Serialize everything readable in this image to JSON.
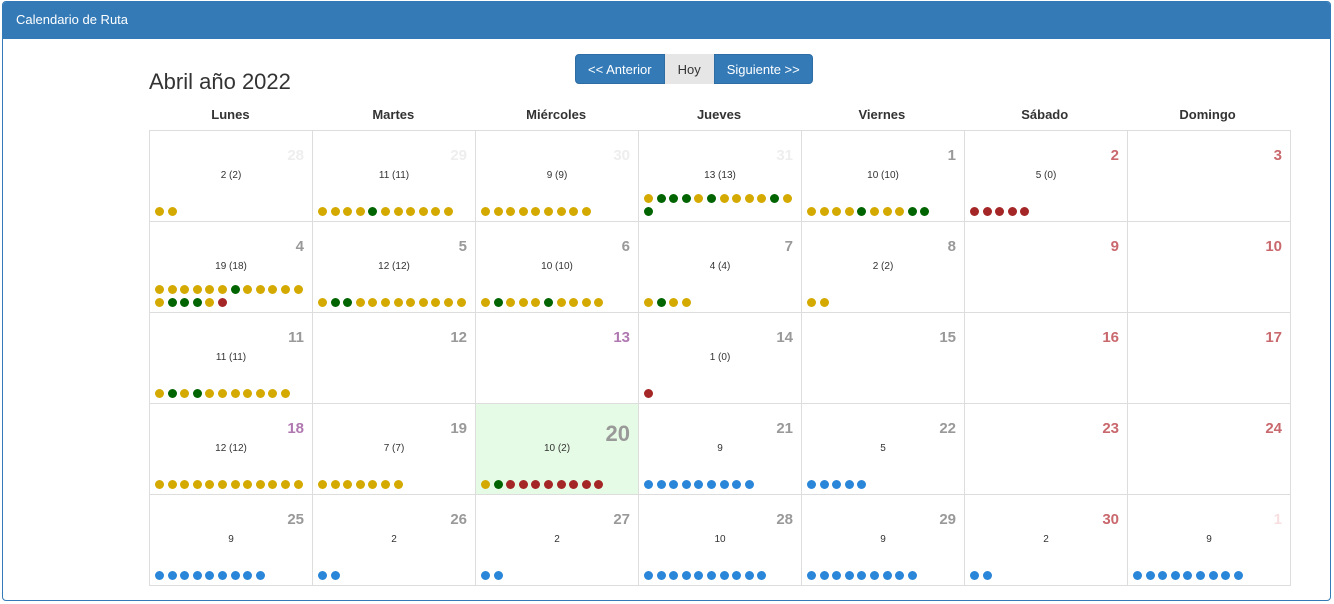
{
  "header": {
    "title": "Calendario de Ruta"
  },
  "nav": {
    "prev_label": "<< Anterior",
    "today_label": "Hoy",
    "next_label": "Siguiente >>"
  },
  "month_title": "Abril año 2022",
  "weekdays": [
    "Lunes",
    "Martes",
    "Miércoles",
    "Jueves",
    "Viernes",
    "Sábado",
    "Domingo"
  ],
  "colors": {
    "day_other_month": "#eeeeee",
    "day_other_month_weekend": "#f7dfe0",
    "day_weekday": "#999999",
    "day_weekend": "#c9686d",
    "day_holiday": "#b078b0",
    "today_bg": "#e5fbe5",
    "dot_green": "#006400",
    "dot_yellow": "#d4aa00",
    "dot_red": "#a52626",
    "dot_blue": "#2a86d8"
  },
  "weeks": [
    [
      {
        "day": "28",
        "kind": "other",
        "count": "2 (2)",
        "dots": "gy"
      },
      {
        "day": "29",
        "kind": "other",
        "count": "11 (11)",
        "dots": "yyyyGyyyyyy"
      },
      {
        "day": "30",
        "kind": "other",
        "count": "9 (9)",
        "dots": "yyyyyyyyy"
      },
      {
        "day": "31",
        "kind": "other",
        "count": "13 (13)",
        "dots": "yGGGyGyyyyGyG"
      },
      {
        "day": "1",
        "kind": "weekday",
        "count": "10 (10)",
        "dots": "yyyyGyyyGG"
      },
      {
        "day": "2",
        "kind": "weekend",
        "count": "5 (0)",
        "dots": "RRRRR"
      },
      {
        "day": "3",
        "kind": "weekend",
        "count": "",
        "dots": ""
      }
    ],
    [
      {
        "day": "4",
        "kind": "weekday",
        "count": "19 (18)",
        "dots": "yyyyyyGyyyyyyGGGyR"
      },
      {
        "day": "5",
        "kind": "weekday",
        "count": "12 (12)",
        "dots": "yGGyyyyyyyyy"
      },
      {
        "day": "6",
        "kind": "weekday",
        "count": "10 (10)",
        "dots": "yGyyyGyyyy"
      },
      {
        "day": "7",
        "kind": "weekday",
        "count": "4 (4)",
        "dots": "yGyy"
      },
      {
        "day": "8",
        "kind": "weekday",
        "count": "2 (2)",
        "dots": "yy"
      },
      {
        "day": "9",
        "kind": "weekend",
        "count": "",
        "dots": ""
      },
      {
        "day": "10",
        "kind": "weekend",
        "count": "",
        "dots": ""
      }
    ],
    [
      {
        "day": "11",
        "kind": "weekday",
        "count": "11 (11)",
        "dots": "yGyGyyyyyyy"
      },
      {
        "day": "12",
        "kind": "weekday",
        "count": "",
        "dots": ""
      },
      {
        "day": "13",
        "kind": "holiday",
        "count": "",
        "dots": ""
      },
      {
        "day": "14",
        "kind": "weekday",
        "count": "1 (0)",
        "dots": "R"
      },
      {
        "day": "15",
        "kind": "weekday",
        "count": "",
        "dots": ""
      },
      {
        "day": "16",
        "kind": "weekend",
        "count": "",
        "dots": ""
      },
      {
        "day": "17",
        "kind": "weekend",
        "count": "",
        "dots": ""
      }
    ],
    [
      {
        "day": "18",
        "kind": "holiday",
        "count": "12 (12)",
        "dots": "yyyyyyyyyyyy"
      },
      {
        "day": "19",
        "kind": "weekday",
        "count": "7 (7)",
        "dots": "yyyyyyy"
      },
      {
        "day": "20",
        "kind": "today",
        "count": "10 (2)",
        "dots": "yGRRRRRRRR"
      },
      {
        "day": "21",
        "kind": "weekday",
        "count": "9",
        "dots": "bbbbbbbbb"
      },
      {
        "day": "22",
        "kind": "weekday",
        "count": "5",
        "dots": "bbbbb"
      },
      {
        "day": "23",
        "kind": "weekend",
        "count": "",
        "dots": ""
      },
      {
        "day": "24",
        "kind": "weekend",
        "count": "",
        "dots": ""
      }
    ],
    [
      {
        "day": "25",
        "kind": "weekday",
        "count": "9",
        "dots": "bbbbbbbbb"
      },
      {
        "day": "26",
        "kind": "weekday",
        "count": "2",
        "dots": "bb"
      },
      {
        "day": "27",
        "kind": "weekday",
        "count": "2",
        "dots": "bb"
      },
      {
        "day": "28",
        "kind": "weekday",
        "count": "10",
        "dots": "bbbbbbbbbb"
      },
      {
        "day": "29",
        "kind": "weekday",
        "count": "9",
        "dots": "bbbbbbbbb"
      },
      {
        "day": "30",
        "kind": "weekend",
        "count": "2",
        "dots": "bb"
      },
      {
        "day": "1",
        "kind": "other-weekend",
        "count": "9",
        "dots": "bbbbbbbbb"
      }
    ]
  ]
}
